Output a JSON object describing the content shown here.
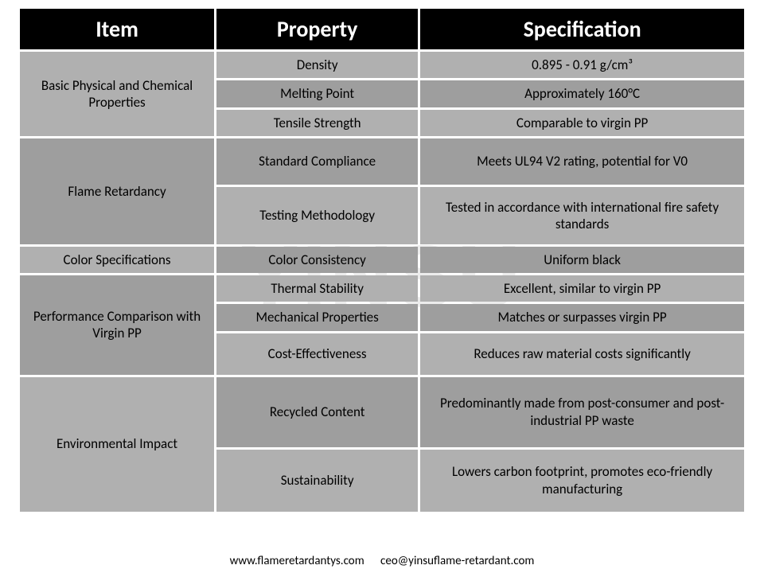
{
  "watermark": "YINSU",
  "headers": {
    "item": "Item",
    "property": "Property",
    "spec": "Specification"
  },
  "footer": {
    "url": "www.flameretardantys.com",
    "email": "ceo@yinsuflame-retardant.com"
  },
  "groups": [
    {
      "item": "Basic Physical and Chemical Properties",
      "item_bg": "#b0b0b0",
      "rows": [
        {
          "property": "Density",
          "spec": "0.895 - 0.91 g/cm³",
          "bg": "#b0b0b0",
          "h": 32
        },
        {
          "property": "Melting Point",
          "spec": "Approximately 160°C",
          "bg": "#9e9e9e",
          "h": 32
        },
        {
          "property": "Tensile Strength",
          "spec": "Comparable to virgin PP",
          "bg": "#b0b0b0",
          "h": 32
        }
      ]
    },
    {
      "item": "Flame Retardancy",
      "item_bg": "#9e9e9e",
      "rows": [
        {
          "property": "Standard Compliance",
          "spec": "Meets UL94 V2 rating, potential for V0",
          "bg": "#9e9e9e",
          "h": 58
        },
        {
          "property": "Testing Methodology",
          "spec": "Tested in accordance with international fire safety standards",
          "bg": "#b0b0b0",
          "h": 72
        }
      ]
    },
    {
      "item": "Color Specifications",
      "item_bg": "#b0b0b0",
      "rows": [
        {
          "property": "Color Consistency",
          "spec": "Uniform black",
          "bg": "#9e9e9e",
          "h": 32
        }
      ]
    },
    {
      "item": "Performance Comparison with Virgin PP",
      "item_bg": "#9e9e9e",
      "rows": [
        {
          "property": "Thermal Stability",
          "spec": "Excellent, similar to virgin PP",
          "bg": "#b0b0b0",
          "h": 32
        },
        {
          "property": "Mechanical Properties",
          "spec": "Matches or surpasses virgin PP",
          "bg": "#9e9e9e",
          "h": 32
        },
        {
          "property": "Cost-Effectiveness",
          "spec": "Reduces raw material costs significantly",
          "bg": "#b0b0b0",
          "h": 52
        }
      ]
    },
    {
      "item": "Environmental Impact",
      "item_bg": "#b0b0b0",
      "rows": [
        {
          "property": "Recycled Content",
          "spec": "Predominantly made from post-consumer and post-industrial PP waste",
          "bg": "#9e9e9e",
          "h": 88
        },
        {
          "property": "Sustainability",
          "spec": "Lowers carbon footprint, promotes eco-friendly manufacturing",
          "bg": "#b0b0b0",
          "h": 78
        }
      ]
    }
  ],
  "colors": {
    "header_bg": "#000000",
    "header_fg": "#ffffff",
    "cell_light": "#b0b0b0",
    "cell_dark": "#9e9e9e",
    "text": "#000000"
  }
}
